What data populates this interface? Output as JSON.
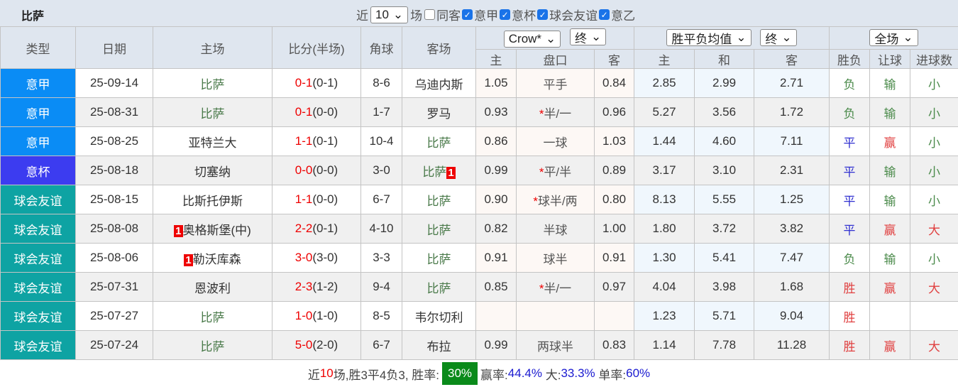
{
  "header": {
    "title": "比萨",
    "recent_label": "近",
    "recent_value": "10",
    "games_label": "场",
    "filters": [
      {
        "label": "同客",
        "checked": false
      },
      {
        "label": "意甲",
        "checked": true
      },
      {
        "label": "意杯",
        "checked": true
      },
      {
        "label": "球会友谊",
        "checked": true
      },
      {
        "label": "意乙",
        "checked": true
      }
    ]
  },
  "columns": {
    "type": "类型",
    "date": "日期",
    "home": "主场",
    "score": "比分(半场)",
    "corner": "角球",
    "away": "客场",
    "company_select": "Crow*",
    "odds_stage_select": "终",
    "ox_select": "胜平负均值",
    "ox_stage_select": "终",
    "period_select": "全场",
    "sub": [
      "主",
      "盘口",
      "客",
      "主",
      "和",
      "客",
      "胜负",
      "让球",
      "进球数"
    ]
  },
  "colors": {
    "意甲": "#0a8cf5",
    "意杯": "#3c3cf0",
    "球会友谊": "#0ea3a3"
  },
  "rows": [
    {
      "type": "意甲",
      "date": "25-09-14",
      "home": "比萨",
      "home_badge": "",
      "score": "0-1",
      "half": "(0-1)",
      "corner": "8-6",
      "away": "乌迪内斯",
      "away_badge": "",
      "oh": "1.05",
      "line": "平手",
      "star": "",
      "oa": "0.84",
      "w": "2.85",
      "d": "2.99",
      "l": "2.71",
      "res": "负",
      "ah": "输",
      "ou": "小"
    },
    {
      "type": "意甲",
      "date": "25-08-31",
      "home": "比萨",
      "home_badge": "",
      "score": "0-1",
      "half": "(0-0)",
      "corner": "1-7",
      "away": "罗马",
      "away_badge": "",
      "oh": "0.93",
      "line": "半/一",
      "star": "*",
      "oa": "0.96",
      "w": "5.27",
      "d": "3.56",
      "l": "1.72",
      "res": "负",
      "ah": "输",
      "ou": "小"
    },
    {
      "type": "意甲",
      "date": "25-08-25",
      "home": "亚特兰大",
      "home_badge": "",
      "score": "1-1",
      "half": "(0-1)",
      "corner": "10-4",
      "away": "比萨",
      "away_badge": "",
      "oh": "0.86",
      "line": "一球",
      "star": "",
      "oa": "1.03",
      "w": "1.44",
      "d": "4.60",
      "l": "7.11",
      "res": "平",
      "ah": "赢",
      "ou": "小"
    },
    {
      "type": "意杯",
      "date": "25-08-18",
      "home": "切塞纳",
      "home_badge": "",
      "score": "0-0",
      "half": "(0-0)",
      "corner": "3-0",
      "away": "比萨",
      "away_badge": "1",
      "oh": "0.99",
      "line": "平/半",
      "star": "*",
      "oa": "0.89",
      "w": "3.17",
      "d": "3.10",
      "l": "2.31",
      "res": "平",
      "ah": "输",
      "ou": "小"
    },
    {
      "type": "球会友谊",
      "date": "25-08-15",
      "home": "比斯托伊斯",
      "home_badge": "",
      "score": "1-1",
      "half": "(0-0)",
      "corner": "6-7",
      "away": "比萨",
      "away_badge": "",
      "oh": "0.90",
      "line": "球半/两",
      "star": "*",
      "oa": "0.80",
      "w": "8.13",
      "d": "5.55",
      "l": "1.25",
      "res": "平",
      "ah": "输",
      "ou": "小"
    },
    {
      "type": "球会友谊",
      "date": "25-08-08",
      "home": "奥格斯堡(中)",
      "home_badge": "1",
      "score": "2-2",
      "half": "(0-1)",
      "corner": "4-10",
      "away": "比萨",
      "away_badge": "",
      "oh": "0.82",
      "line": "半球",
      "star": "",
      "oa": "1.00",
      "w": "1.80",
      "d": "3.72",
      "l": "3.82",
      "res": "平",
      "ah": "赢",
      "ou": "大"
    },
    {
      "type": "球会友谊",
      "date": "25-08-06",
      "home": "勒沃库森",
      "home_badge": "1",
      "score": "3-0",
      "half": "(3-0)",
      "corner": "3-3",
      "away": "比萨",
      "away_badge": "",
      "oh": "0.91",
      "line": "球半",
      "star": "",
      "oa": "0.91",
      "w": "1.30",
      "d": "5.41",
      "l": "7.47",
      "res": "负",
      "ah": "输",
      "ou": "小"
    },
    {
      "type": "球会友谊",
      "date": "25-07-31",
      "home": "恩波利",
      "home_badge": "",
      "score": "2-3",
      "half": "(1-2)",
      "corner": "9-4",
      "away": "比萨",
      "away_badge": "",
      "oh": "0.85",
      "line": "半/一",
      "star": "*",
      "oa": "0.97",
      "w": "4.04",
      "d": "3.98",
      "l": "1.68",
      "res": "胜",
      "ah": "赢",
      "ou": "大"
    },
    {
      "type": "球会友谊",
      "date": "25-07-27",
      "home": "比萨",
      "home_badge": "",
      "score": "1-0",
      "half": "(1-0)",
      "corner": "8-5",
      "away": "韦尔切利",
      "away_badge": "",
      "oh": "",
      "line": "",
      "star": "",
      "oa": "",
      "w": "1.23",
      "d": "5.71",
      "l": "9.04",
      "res": "胜",
      "ah": "",
      "ou": ""
    },
    {
      "type": "球会友谊",
      "date": "25-07-24",
      "home": "比萨",
      "home_badge": "",
      "score": "5-0",
      "half": "(2-0)",
      "corner": "6-7",
      "away": "布拉",
      "away_badge": "",
      "oh": "0.99",
      "line": "两球半",
      "star": "",
      "oa": "0.83",
      "w": "1.14",
      "d": "7.78",
      "l": "11.28",
      "res": "胜",
      "ah": "赢",
      "ou": "大"
    }
  ],
  "summary": {
    "p1": "近",
    "n": "10",
    "p2": "场,胜3平4负3, 胜率:",
    "win_rate": "30%",
    "ah_label": "赢率:",
    "ah_rate": "44.4%",
    "ou_label": "大:",
    "ou_rate": "33.3%",
    "odd_label": "单率:",
    "odd_rate": "60%"
  }
}
